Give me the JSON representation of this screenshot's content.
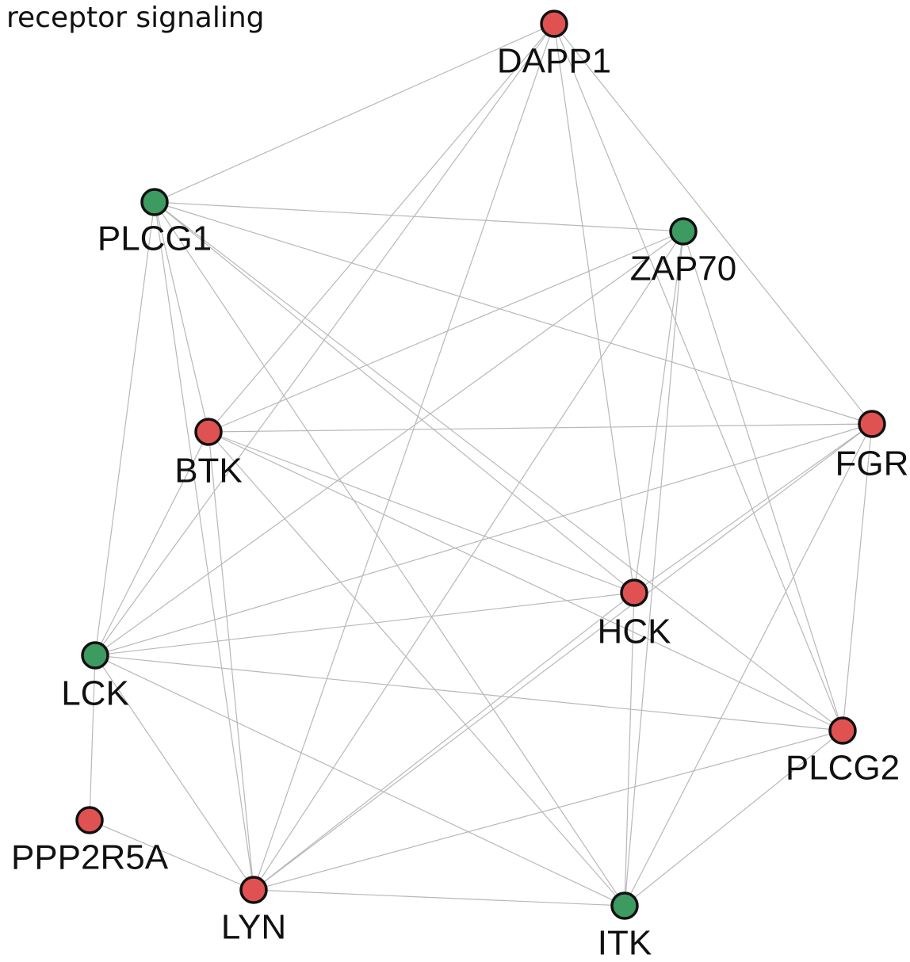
{
  "title": "receptor signaling",
  "nodes": [
    {
      "label": "DAPP1",
      "color": "#e05252"
    },
    {
      "label": "PLCG1",
      "color": "#3d9a60"
    },
    {
      "label": "ZAP70",
      "color": "#3d9a60"
    },
    {
      "label": "BTK",
      "color": "#e05252"
    },
    {
      "label": "FGR",
      "color": "#e05252"
    },
    {
      "label": "HCK",
      "color": "#e05252"
    },
    {
      "label": "LCK",
      "color": "#3d9a60"
    },
    {
      "label": "PLCG2",
      "color": "#e05252"
    },
    {
      "label": "PPP2R5A",
      "color": "#e05252"
    },
    {
      "label": "LYN",
      "color": "#e05252"
    },
    {
      "label": "ITK",
      "color": "#3d9a60"
    }
  ]
}
